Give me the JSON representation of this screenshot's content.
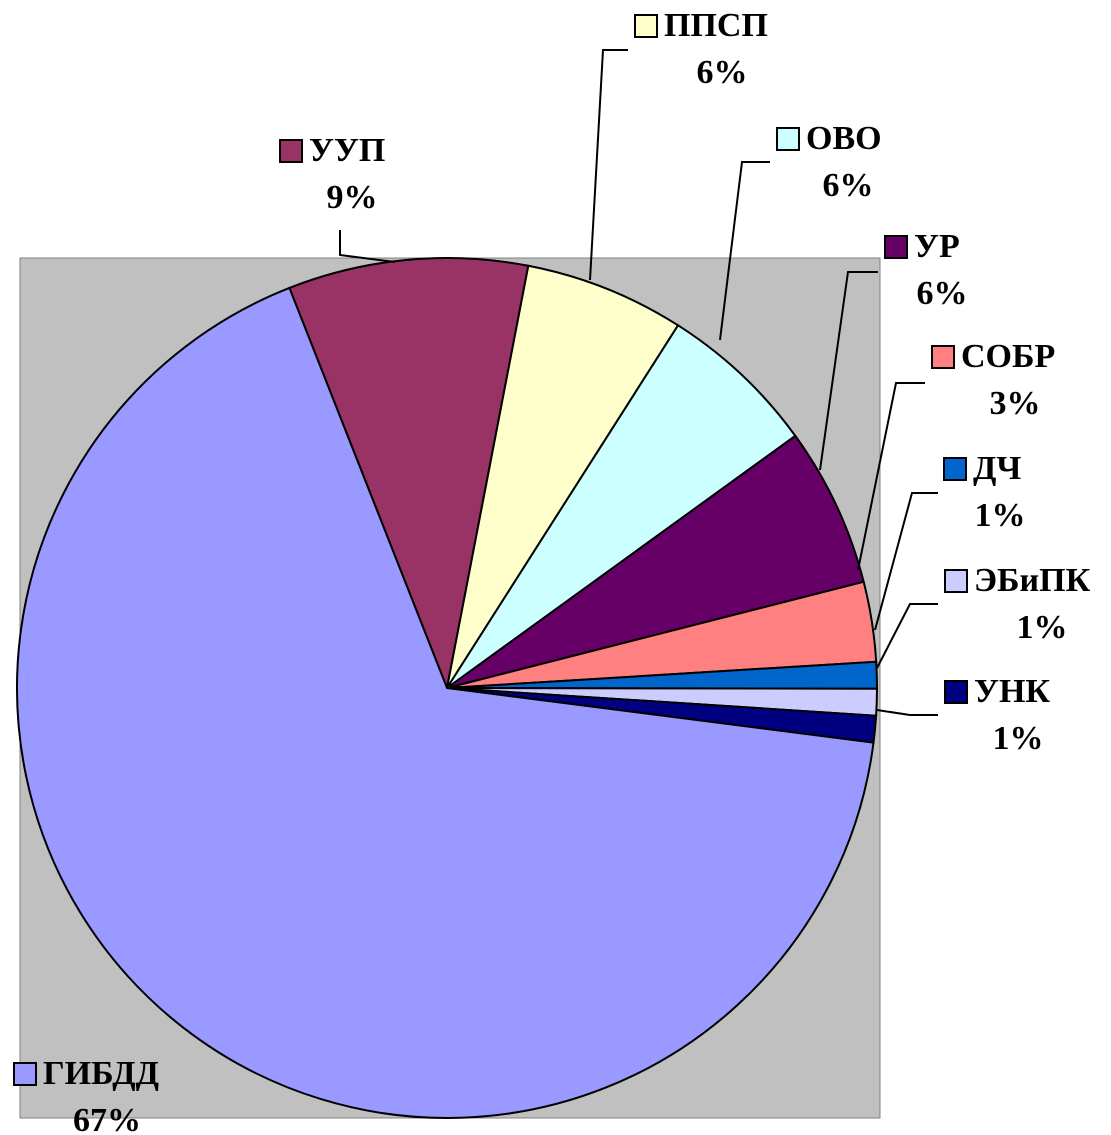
{
  "chart_data": {
    "type": "pie",
    "categories": [
      "УУП",
      "ППСП",
      "ОВО",
      "УР",
      "СОБР",
      "ДЧ",
      "ЭБиПК",
      "УНК",
      "ГИБДД"
    ],
    "values": [
      9,
      6,
      6,
      6,
      3,
      1,
      1,
      1,
      67
    ],
    "value_labels": [
      "9%",
      "6%",
      "6%",
      "6%",
      "3%",
      "1%",
      "1%",
      "1%",
      "67%"
    ],
    "colors": [
      "#993366",
      "#ffffcc",
      "#ccffff",
      "#660066",
      "#ff8080",
      "#0066cc",
      "#ccccff",
      "#000080",
      "#9999ff"
    ]
  }
}
